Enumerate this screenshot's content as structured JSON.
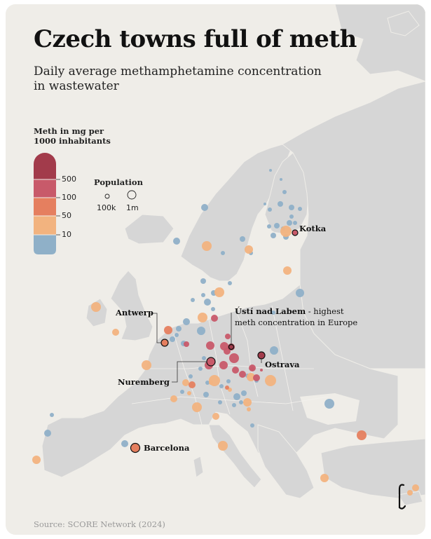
{
  "title": "Czech towns full of meth",
  "subtitle": "Daily average methamphetamine concentration in wastewater",
  "legend": {
    "title": "Meth in mg per 1000 inhabitants",
    "ticks": [
      "500",
      "100",
      "50",
      "10"
    ],
    "colors": [
      "#a23b4b",
      "#c85a6a",
      "#e57f5f",
      "#f2b37f",
      "#8fb0c8"
    ]
  },
  "population_legend": {
    "title": "Population",
    "small_label": "100k",
    "large_label": "1m"
  },
  "annotations": {
    "kotka": "Kotka",
    "antwerp": "Antwerp",
    "usti": "Ústí nad Labem",
    "usti_note_1": " - highest",
    "usti_note_2": "meth concentration in Europe",
    "ostrava": "Ostrava",
    "nuremberg": "Nuremberg",
    "barcelona": "Barcelona"
  },
  "source": "Source: SCORE Network (2024)",
  "colors": {
    "background": "#efede8",
    "land": "#d4d4d4",
    "water": "#efede8",
    "low": "#8fb0c8",
    "mid_low": "#f2b37f",
    "mid": "#e57f5f",
    "high": "#c85a6a",
    "very_high": "#a23b4b"
  }
}
